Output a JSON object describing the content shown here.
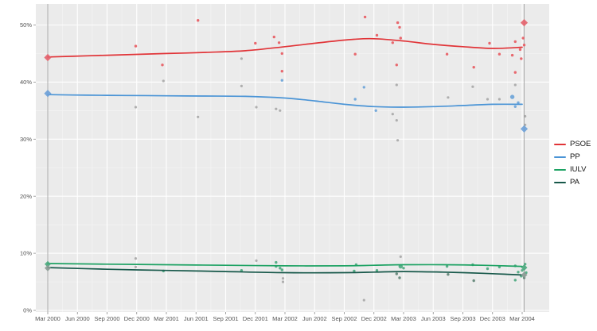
{
  "figure": {
    "description": "Opinion polling line chart with scatter points, four parties, Mar 2000 to Mar 2004",
    "panel_bg": "#ebebeb",
    "grid_major": "#ffffff",
    "grid_minor": "#f4f4f4",
    "election_line_color": "#aaaaaa",
    "tick_color": "#8c8c8c",
    "label_color": "#555555"
  },
  "legend": {
    "items": [
      {
        "label": "PSOE",
        "color": "#e13438"
      },
      {
        "label": "PP",
        "color": "#4a94d6"
      },
      {
        "label": "IULV",
        "color": "#1da263"
      },
      {
        "label": "PA",
        "color": "#17584a"
      }
    ]
  },
  "chart_data": {
    "type": "scatter",
    "title": "",
    "xlabel": "",
    "ylabel": "",
    "x_axis": {
      "tick_labels": [
        "Mar 2000",
        "Jun 2000",
        "Sep 2000",
        "Dec 2000",
        "Mar 2001",
        "Jun 2001",
        "Sep 2001",
        "Dec 2001",
        "Mar 2002",
        "Jun 2002",
        "Sep 2002",
        "Dec 2002",
        "Mar 2003",
        "Jun 2003",
        "Sep 2003",
        "Dec 2003",
        "Mar 2004"
      ],
      "tick_months": [
        0,
        3,
        6,
        9,
        12,
        15,
        18,
        21,
        24,
        27,
        30,
        33,
        36,
        39,
        42,
        45,
        48
      ]
    },
    "y_axis": {
      "tick_labels": [
        "0%",
        "10%",
        "20%",
        "30%",
        "40%",
        "50%"
      ],
      "tick_values": [
        0,
        10,
        20,
        30,
        40,
        50
      ],
      "range": [
        0,
        53.7
      ]
    },
    "election_lines_months": [
      0,
      48.2
    ],
    "series": [
      {
        "name": "PSOE",
        "line_color": "#e13438",
        "point_color": "#e85a60",
        "trend": [
          [
            0,
            44.4
          ],
          [
            4,
            44.6
          ],
          [
            8,
            44.8
          ],
          [
            12,
            45.0
          ],
          [
            16,
            45.2
          ],
          [
            20,
            45.5
          ],
          [
            24,
            46.2
          ],
          [
            28,
            47.0
          ],
          [
            31,
            47.5
          ],
          [
            33,
            47.6
          ],
          [
            36,
            47.2
          ],
          [
            39,
            46.6
          ],
          [
            42,
            46.2
          ],
          [
            45,
            45.9
          ],
          [
            48,
            46.1
          ]
        ],
        "polls": [
          [
            8.9,
            46.3
          ],
          [
            11.6,
            43.0
          ],
          [
            15.2,
            50.8
          ],
          [
            21.0,
            46.8
          ],
          [
            22.9,
            47.9
          ],
          [
            23.4,
            46.9
          ],
          [
            23.7,
            45.0
          ],
          [
            23.7,
            41.9
          ],
          [
            31.1,
            44.9
          ],
          [
            32.1,
            51.4
          ],
          [
            33.3,
            48.2
          ],
          [
            34.9,
            46.9
          ],
          [
            35.3,
            43.0
          ],
          [
            35.4,
            50.4
          ],
          [
            35.6,
            49.6
          ],
          [
            35.7,
            47.7
          ],
          [
            40.4,
            44.9
          ],
          [
            43.1,
            42.6
          ],
          [
            44.7,
            46.8
          ],
          [
            45.7,
            44.9
          ],
          [
            47.0,
            44.7
          ],
          [
            47.3,
            41.7
          ],
          [
            47.3,
            47.1
          ],
          [
            47.8,
            45.7
          ],
          [
            47.9,
            44.1
          ],
          [
            48.1,
            47.7
          ],
          [
            48.2,
            46.5
          ]
        ]
      },
      {
        "name": "PP",
        "line_color": "#4a94d6",
        "point_color": "#6aa3d8",
        "trend": [
          [
            0,
            37.8
          ],
          [
            4,
            37.7
          ],
          [
            8,
            37.65
          ],
          [
            12,
            37.6
          ],
          [
            16,
            37.55
          ],
          [
            20,
            37.5
          ],
          [
            24,
            37.2
          ],
          [
            27,
            36.7
          ],
          [
            30,
            36.1
          ],
          [
            33,
            35.7
          ],
          [
            36,
            35.6
          ],
          [
            39,
            35.7
          ],
          [
            42,
            35.9
          ],
          [
            45,
            36.1
          ],
          [
            48,
            36.1
          ]
        ],
        "polls": [
          [
            23.7,
            40.3
          ],
          [
            31.1,
            37.0
          ],
          [
            32.0,
            39.1
          ],
          [
            33.2,
            35.0
          ],
          [
            47.0,
            37.4,
            1
          ],
          [
            47.6,
            36.4
          ],
          [
            47.3,
            35.7
          ]
        ]
      },
      {
        "name": "IULV",
        "line_color": "#1da263",
        "point_color": "#4aa87e",
        "trend": [
          [
            0,
            8.2
          ],
          [
            6,
            8.1
          ],
          [
            12,
            8.0
          ],
          [
            18,
            7.9
          ],
          [
            24,
            7.8
          ],
          [
            30,
            7.8
          ],
          [
            33,
            7.9
          ],
          [
            36,
            8.0
          ],
          [
            40,
            8.0
          ],
          [
            44,
            7.9
          ],
          [
            48,
            7.7
          ]
        ],
        "polls": [
          [
            11.7,
            6.9
          ],
          [
            19.6,
            7.0
          ],
          [
            23.1,
            8.4
          ],
          [
            23.1,
            7.7
          ],
          [
            23.5,
            7.4
          ],
          [
            23.7,
            7.1
          ],
          [
            31.2,
            8.0
          ],
          [
            31.0,
            6.9
          ],
          [
            33.3,
            7.0
          ],
          [
            35.7,
            7.7,
            1
          ],
          [
            36.0,
            7.4
          ],
          [
            40.4,
            7.7
          ],
          [
            43.0,
            8.0
          ],
          [
            44.5,
            7.3
          ],
          [
            45.7,
            7.6
          ],
          [
            47.3,
            7.8
          ],
          [
            48.3,
            8.1
          ],
          [
            47.6,
            6.7
          ],
          [
            47.9,
            6.0
          ],
          [
            47.3,
            5.3
          ],
          [
            48.0,
            7.0
          ],
          [
            48.4,
            6.6
          ]
        ]
      },
      {
        "name": "PA",
        "line_color": "#17584a",
        "point_color": "#5d8273",
        "trend": [
          [
            0,
            7.5
          ],
          [
            6,
            7.2
          ],
          [
            12,
            7.0
          ],
          [
            18,
            6.8
          ],
          [
            24,
            6.6
          ],
          [
            30,
            6.6
          ],
          [
            33,
            6.7
          ],
          [
            36,
            6.8
          ],
          [
            40,
            6.7
          ],
          [
            44,
            6.5
          ],
          [
            48,
            6.2
          ]
        ],
        "polls": [
          [
            35.3,
            6.4
          ],
          [
            35.6,
            5.7
          ],
          [
            40.5,
            6.3
          ],
          [
            43.1,
            5.2
          ],
          [
            48.2,
            5.7
          ]
        ]
      }
    ],
    "other_polls": {
      "color": "#999999",
      "points": [
        [
          8.9,
          35.6
        ],
        [
          8.9,
          9.1
        ],
        [
          8.9,
          7.6
        ],
        [
          11.7,
          40.2
        ],
        [
          15.2,
          33.9
        ],
        [
          19.6,
          44.1
        ],
        [
          19.6,
          39.3
        ],
        [
          21.1,
          35.6
        ],
        [
          21.1,
          8.7
        ],
        [
          23.1,
          35.3
        ],
        [
          23.5,
          35.0
        ],
        [
          23.8,
          5.6
        ],
        [
          23.8,
          5.0
        ],
        [
          32.0,
          1.8
        ],
        [
          34.9,
          34.4
        ],
        [
          35.3,
          33.3
        ],
        [
          35.4,
          29.8
        ],
        [
          35.3,
          39.5
        ],
        [
          35.7,
          9.4
        ],
        [
          40.5,
          37.3
        ],
        [
          43.0,
          39.2
        ],
        [
          44.5,
          37.0
        ],
        [
          45.7,
          37.0
        ],
        [
          47.3,
          39.5
        ],
        [
          48.3,
          34.0
        ],
        [
          48.3,
          32.5
        ]
      ]
    },
    "elections": [
      {
        "month": 0,
        "label": "Mar 2000",
        "results": [
          {
            "party": "PSOE",
            "value": 44.3,
            "color": "#e4616b"
          },
          {
            "party": "PP",
            "value": 38.0,
            "color": "#6ca0d8"
          },
          {
            "party": "IULV",
            "value": 8.1,
            "color": "#48a87c"
          },
          {
            "party": "PA",
            "value": 7.4,
            "color": "#8a9a93"
          }
        ]
      },
      {
        "month": 48.2,
        "label": "Mar 2004",
        "results": [
          {
            "party": "PSOE",
            "value": 50.4,
            "color": "#e4616b"
          },
          {
            "party": "PP",
            "value": 31.8,
            "color": "#6ca0d8"
          },
          {
            "party": "IULV",
            "value": 7.5,
            "color": "#48a87c"
          },
          {
            "party": "PA",
            "value": 6.2,
            "color": "#8a9a93"
          }
        ]
      }
    ]
  }
}
